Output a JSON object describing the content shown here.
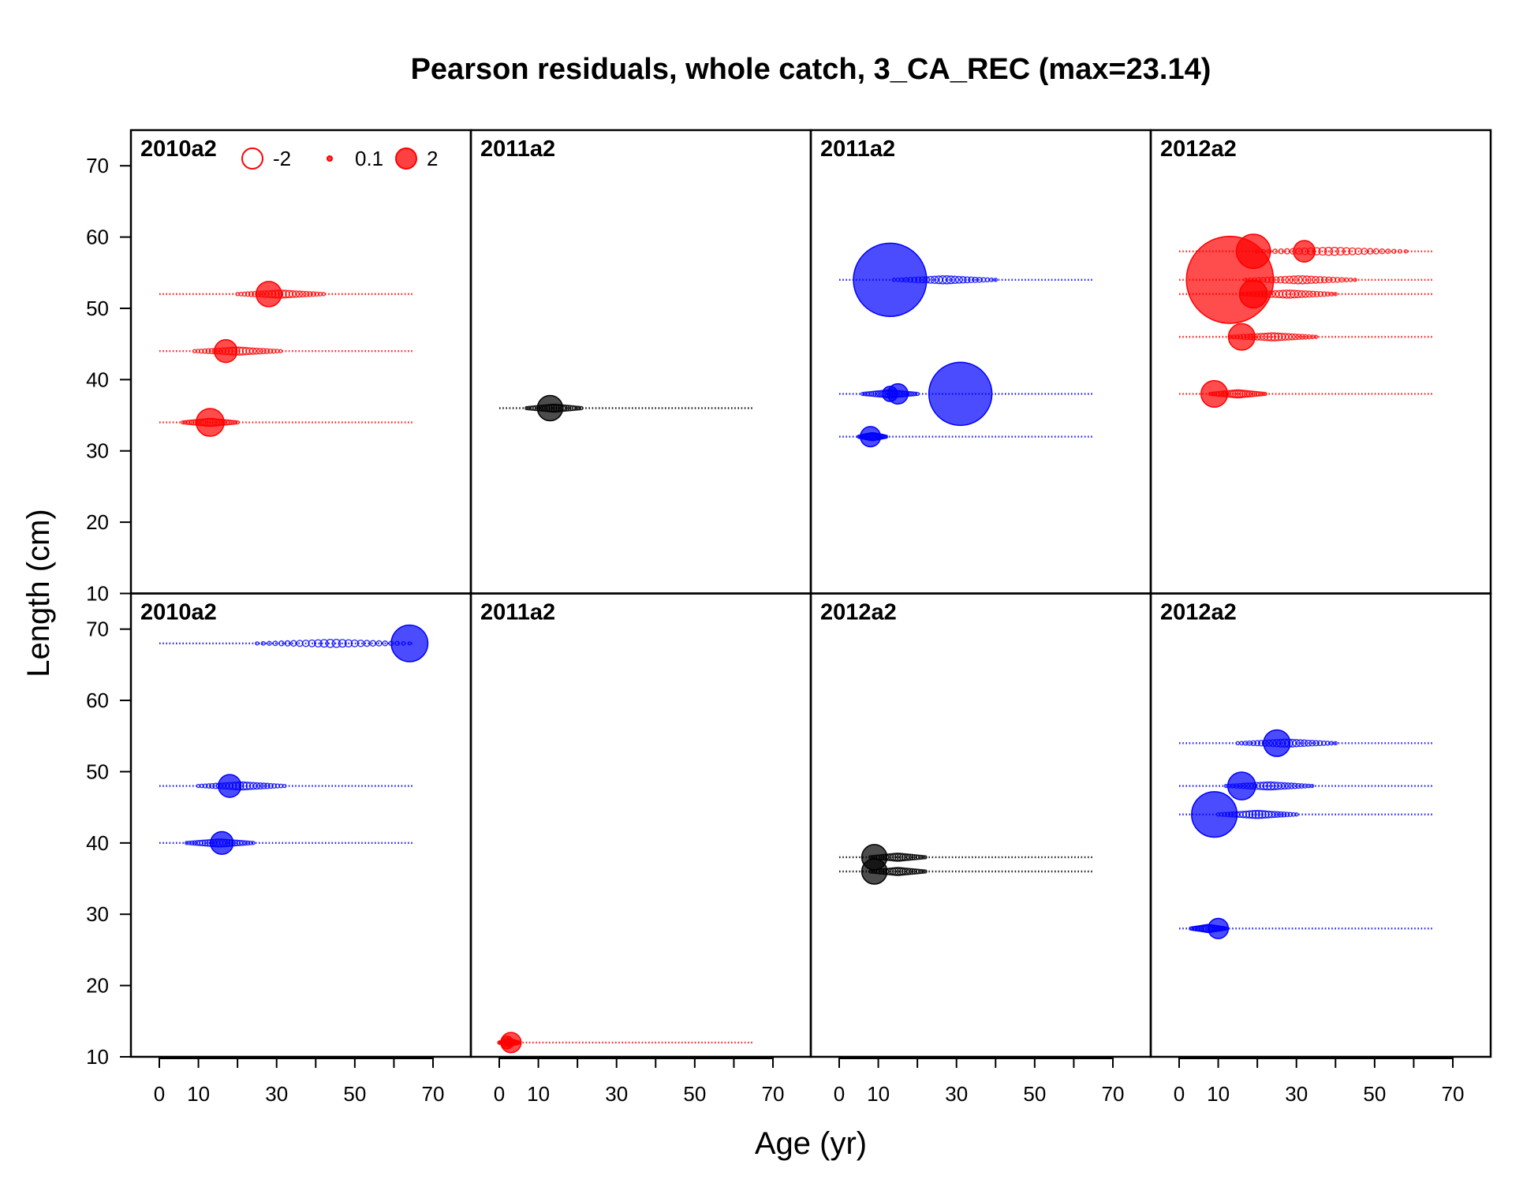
{
  "chart_data": {
    "type": "scatter",
    "title": "Pearson residuals, whole catch, 3_CA_REC (max=23.14)",
    "xlabel": "Age (yr)",
    "ylabel": "Length (cm)",
    "xlim": [
      0,
      70
    ],
    "ylim": [
      10,
      75
    ],
    "x_ticks": [
      0,
      10,
      30,
      50,
      70
    ],
    "x_minor_ticks": [
      0,
      10,
      20,
      30,
      40,
      50,
      60,
      70
    ],
    "y_ticks": [
      10,
      20,
      30,
      40,
      50,
      60,
      70
    ],
    "legend": {
      "position": "top-left",
      "entries": [
        {
          "label": "-2",
          "value": -2
        },
        {
          "label": "0.1",
          "value": 0.1
        },
        {
          "label": "2",
          "value": 2
        }
      ]
    },
    "colors": {
      "positive": "#ff0000",
      "negative": "#0000ff",
      "neutral": "#000000"
    },
    "layout": {
      "rows": 2,
      "cols": 4
    },
    "panels": [
      {
        "label": "2010a2",
        "rows": [
          {
            "length": 52,
            "color": "red",
            "big": [
              [
                28,
                2.0
              ]
            ],
            "clusterStart": 20,
            "clusterEnd": 42
          },
          {
            "length": 44,
            "color": "red",
            "big": [
              [
                17,
                1.8
              ]
            ],
            "clusterStart": 9,
            "clusterEnd": 31
          },
          {
            "length": 34,
            "color": "red",
            "big": [
              [
                13,
                2.2
              ]
            ],
            "clusterStart": 6,
            "clusterEnd": 20
          }
        ]
      },
      {
        "label": "2011a2",
        "rows": [
          {
            "length": 36,
            "color": "black",
            "big": [
              [
                13,
                2.0
              ]
            ],
            "clusterStart": 7,
            "clusterEnd": 21
          }
        ]
      },
      {
        "label": "2011a2",
        "rows": [
          {
            "length": 54,
            "color": "blue",
            "big": [
              [
                13,
                5.8
              ]
            ],
            "clusterStart": 14,
            "clusterEnd": 40
          },
          {
            "length": 38,
            "color": "blue",
            "big": [
              [
                31,
                5.0
              ],
              [
                15,
                1.6
              ],
              [
                13,
                1.2
              ]
            ],
            "clusterStart": 6,
            "clusterEnd": 20
          },
          {
            "length": 32,
            "color": "blue",
            "big": [
              [
                8,
                1.6
              ]
            ],
            "clusterStart": 5,
            "clusterEnd": 12
          }
        ]
      },
      {
        "label": "2012a2",
        "rows": [
          {
            "length": 58,
            "color": "red",
            "big": [
              [
                19,
                2.7
              ],
              [
                32,
                1.7
              ]
            ],
            "clusterStart": 20,
            "clusterEnd": 58
          },
          {
            "length": 54,
            "color": "red",
            "big": [
              [
                13,
                6.9
              ]
            ],
            "clusterStart": 17,
            "clusterEnd": 45
          },
          {
            "length": 52,
            "color": "red",
            "big": [
              [
                19,
                2.2
              ]
            ],
            "clusterStart": 16,
            "clusterEnd": 40
          },
          {
            "length": 46,
            "color": "red",
            "big": [
              [
                16,
                2.1
              ]
            ],
            "clusterStart": 13,
            "clusterEnd": 35
          },
          {
            "length": 38,
            "color": "red",
            "big": [
              [
                9,
                2.1
              ]
            ],
            "clusterStart": 8,
            "clusterEnd": 22
          }
        ]
      },
      {
        "label": "2010a2",
        "rows": [
          {
            "length": 68,
            "color": "blue",
            "big": [
              [
                64,
                2.9
              ]
            ],
            "clusterStart": 25,
            "clusterEnd": 64
          },
          {
            "length": 48,
            "color": "blue",
            "big": [
              [
                18,
                1.8
              ]
            ],
            "clusterStart": 10,
            "clusterEnd": 32
          },
          {
            "length": 40,
            "color": "blue",
            "big": [
              [
                16,
                1.8
              ]
            ],
            "clusterStart": 7,
            "clusterEnd": 24
          }
        ]
      },
      {
        "label": "2011a2",
        "rows": [
          {
            "length": 12,
            "color": "red",
            "big": [
              [
                3,
                1.6
              ],
              [
                2,
                1.0
              ]
            ],
            "clusterStart": 0,
            "clusterEnd": 5
          }
        ]
      },
      {
        "label": "2012a2",
        "rows": [
          {
            "length": 38,
            "color": "black",
            "big": [
              [
                9,
                2.0
              ]
            ],
            "clusterStart": 8,
            "clusterEnd": 22
          },
          {
            "length": 36,
            "color": "black",
            "big": [
              [
                9,
                2.0
              ]
            ],
            "clusterStart": 8,
            "clusterEnd": 22
          }
        ]
      },
      {
        "label": "2012a2",
        "rows": [
          {
            "length": 54,
            "color": "blue",
            "big": [
              [
                25,
                2.1
              ]
            ],
            "clusterStart": 15,
            "clusterEnd": 40
          },
          {
            "length": 48,
            "color": "blue",
            "big": [
              [
                16,
                2.2
              ]
            ],
            "clusterStart": 12,
            "clusterEnd": 34
          },
          {
            "length": 44,
            "color": "blue",
            "big": [
              [
                9,
                3.6
              ]
            ],
            "clusterStart": 10,
            "clusterEnd": 30
          },
          {
            "length": 28,
            "color": "blue",
            "big": [
              [
                10,
                1.6
              ]
            ],
            "clusterStart": 3,
            "clusterEnd": 12
          }
        ]
      }
    ]
  }
}
